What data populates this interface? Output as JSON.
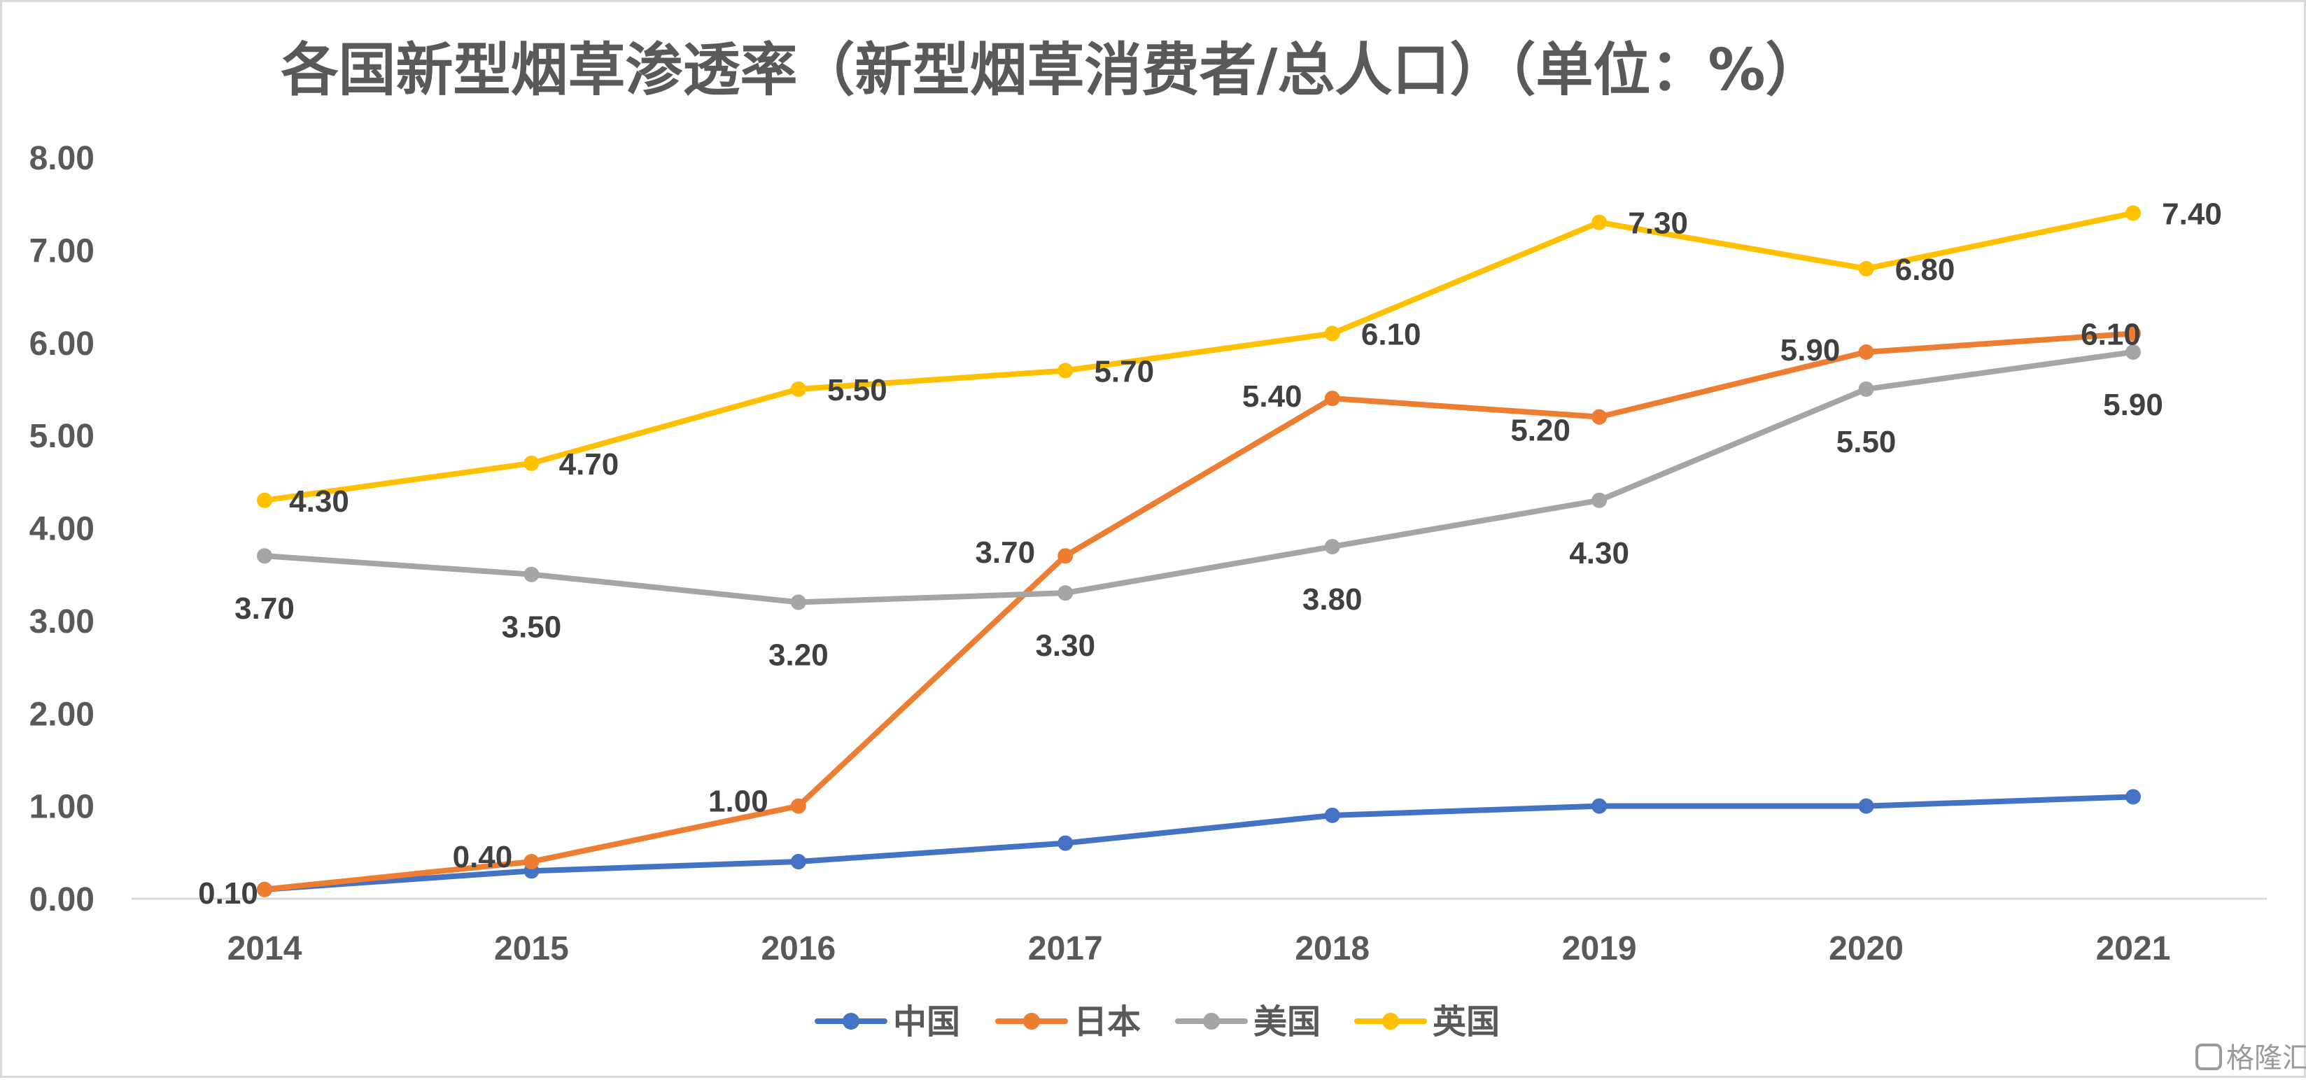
{
  "chart_data": {
    "type": "line",
    "title": "各国新型烟草渗透率（新型烟草消费者/总人口）（单位：%）",
    "xlabel": "",
    "ylabel": "",
    "categories": [
      "2014",
      "2015",
      "2016",
      "2017",
      "2018",
      "2019",
      "2020",
      "2021"
    ],
    "ylim": [
      0,
      8
    ],
    "y_ticks": [
      "0.00",
      "1.00",
      "2.00",
      "3.00",
      "4.00",
      "5.00",
      "6.00",
      "7.00",
      "8.00"
    ],
    "grid": false,
    "legend_position": "bottom",
    "series": [
      {
        "name": "中国",
        "color": "#4472C4",
        "values": [
          0.1,
          0.3,
          0.4,
          0.6,
          0.9,
          1.0,
          1.0,
          1.1
        ],
        "labels": [
          "",
          "",
          "",
          "",
          "",
          "",
          "",
          ""
        ]
      },
      {
        "name": "日本",
        "color": "#ED7D31",
        "values": [
          0.1,
          0.4,
          1.0,
          3.7,
          5.4,
          5.2,
          5.9,
          6.1
        ],
        "labels": [
          "0.10",
          "0.40",
          "1.00",
          "3.70",
          "5.40",
          "5.20",
          "5.90",
          "6.10"
        ]
      },
      {
        "name": "美国",
        "color": "#A5A5A5",
        "values": [
          3.7,
          3.5,
          3.2,
          3.3,
          3.8,
          4.3,
          5.5,
          5.9
        ],
        "labels": [
          "3.70",
          "3.50",
          "3.20",
          "3.30",
          "3.80",
          "4.30",
          "5.50",
          "5.90"
        ]
      },
      {
        "name": "英国",
        "color": "#FFC000",
        "values": [
          4.3,
          4.7,
          5.5,
          5.7,
          6.1,
          7.3,
          6.8,
          7.4
        ],
        "labels": [
          "4.30",
          "4.70",
          "5.50",
          "5.70",
          "6.10",
          "7.30",
          "6.80",
          "7.40"
        ]
      }
    ],
    "watermark": "格隆汇"
  }
}
